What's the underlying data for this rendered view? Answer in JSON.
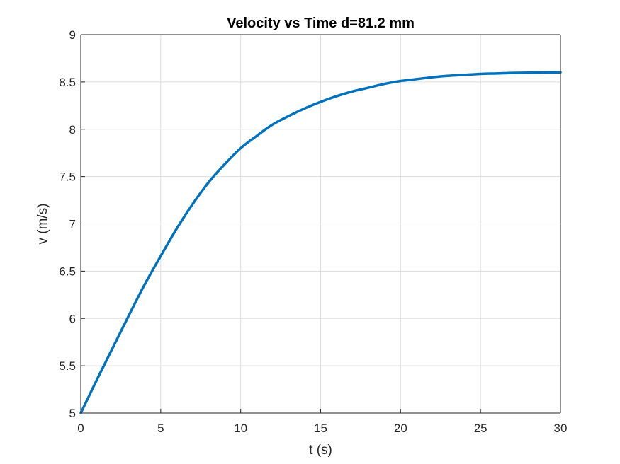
{
  "chart_data": {
    "type": "line",
    "title": "Velocity vs Time d=81.2 mm",
    "xlabel": "t (s)",
    "ylabel": "v (m/s)",
    "xlim": [
      0,
      30
    ],
    "ylim": [
      5,
      9
    ],
    "xticks": [
      0,
      5,
      10,
      15,
      20,
      25,
      30
    ],
    "xtick_labels": [
      "0",
      "5",
      "10",
      "15",
      "20",
      "25",
      "30"
    ],
    "yticks": [
      5,
      5.5,
      6,
      6.5,
      7,
      7.5,
      8,
      8.5,
      9
    ],
    "ytick_labels": [
      "5",
      "5.5",
      "6",
      "6.5",
      "7",
      "7.5",
      "8",
      "8.5",
      "9"
    ],
    "grid": true,
    "series": [
      {
        "color": "#0072bd",
        "x": [
          0,
          1,
          2,
          3,
          4,
          5,
          6,
          7,
          8,
          9,
          10,
          11,
          12,
          13,
          14,
          15,
          16,
          17,
          18,
          19,
          20,
          21,
          22,
          23,
          24,
          25,
          26,
          27,
          28,
          29,
          30
        ],
        "y": [
          5.0,
          5.35,
          5.69,
          6.03,
          6.36,
          6.66,
          6.95,
          7.21,
          7.44,
          7.63,
          7.8,
          7.93,
          8.05,
          8.14,
          8.22,
          8.29,
          8.35,
          8.4,
          8.44,
          8.48,
          8.51,
          8.53,
          8.55,
          8.565,
          8.575,
          8.585,
          8.59,
          8.595,
          8.598,
          8.6,
          8.602
        ]
      }
    ]
  }
}
